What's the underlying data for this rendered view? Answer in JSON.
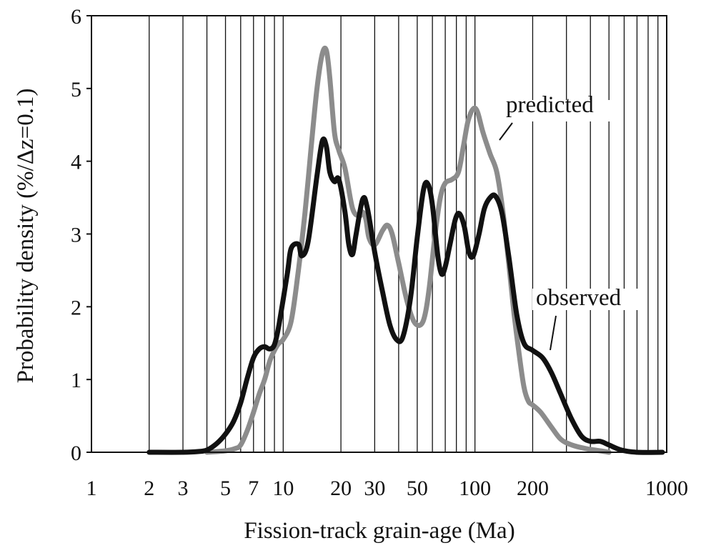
{
  "chart_data": {
    "type": "line",
    "xlabel": "Fission-track grain-age (Ma)",
    "ylabel": "Probability density (%/Δz=0.1)",
    "xscale": "log",
    "xlim": [
      1,
      1000
    ],
    "ylim": [
      0,
      6
    ],
    "grid": "vertical",
    "x_tick_labels": [
      {
        "value": 1,
        "label": "1"
      },
      {
        "value": 2,
        "label": "2"
      },
      {
        "value": 3,
        "label": "3"
      },
      {
        "value": 5,
        "label": "5"
      },
      {
        "value": 7,
        "label": "7"
      },
      {
        "value": 10,
        "label": "10"
      },
      {
        "value": 20,
        "label": "20"
      },
      {
        "value": 30,
        "label": "30"
      },
      {
        "value": 50,
        "label": "50"
      },
      {
        "value": 100,
        "label": "100"
      },
      {
        "value": 200,
        "label": "200"
      },
      {
        "value": 1000,
        "label": "1000"
      }
    ],
    "y_ticks": [
      0,
      1,
      2,
      3,
      4,
      5,
      6
    ],
    "series": [
      {
        "name": "observed",
        "color": "#111111",
        "points": [
          [
            2.0,
            0.0
          ],
          [
            3.0,
            0.0
          ],
          [
            3.6,
            0.01
          ],
          [
            4.0,
            0.03
          ],
          [
            4.5,
            0.12
          ],
          [
            5.0,
            0.25
          ],
          [
            5.5,
            0.42
          ],
          [
            6.0,
            0.68
          ],
          [
            6.5,
            1.02
          ],
          [
            7.0,
            1.3
          ],
          [
            7.5,
            1.42
          ],
          [
            8.0,
            1.45
          ],
          [
            8.5,
            1.42
          ],
          [
            9.0,
            1.48
          ],
          [
            9.5,
            1.75
          ],
          [
            10.5,
            2.45
          ],
          [
            11.0,
            2.8
          ],
          [
            12.0,
            2.86
          ],
          [
            12.5,
            2.7
          ],
          [
            13.5,
            2.9
          ],
          [
            15.0,
            3.8
          ],
          [
            16.0,
            4.28
          ],
          [
            16.8,
            4.2
          ],
          [
            17.5,
            3.85
          ],
          [
            18.5,
            3.72
          ],
          [
            19.5,
            3.75
          ],
          [
            21.0,
            3.3
          ],
          [
            22.0,
            2.85
          ],
          [
            23.0,
            2.72
          ],
          [
            24.0,
            3.0
          ],
          [
            26.0,
            3.48
          ],
          [
            27.5,
            3.35
          ],
          [
            30.0,
            2.75
          ],
          [
            33.0,
            2.2
          ],
          [
            36.0,
            1.75
          ],
          [
            39.0,
            1.55
          ],
          [
            42.0,
            1.58
          ],
          [
            46.0,
            2.1
          ],
          [
            50.0,
            2.95
          ],
          [
            54.0,
            3.62
          ],
          [
            57.0,
            3.68
          ],
          [
            60.0,
            3.4
          ],
          [
            64.0,
            2.7
          ],
          [
            67.0,
            2.45
          ],
          [
            70.0,
            2.55
          ],
          [
            74.0,
            2.85
          ],
          [
            79.0,
            3.2
          ],
          [
            83.0,
            3.28
          ],
          [
            88.0,
            3.1
          ],
          [
            93.0,
            2.75
          ],
          [
            98.0,
            2.7
          ],
          [
            105.0,
            3.0
          ],
          [
            112.0,
            3.35
          ],
          [
            120.0,
            3.5
          ],
          [
            128.0,
            3.52
          ],
          [
            138.0,
            3.3
          ],
          [
            150.0,
            2.7
          ],
          [
            165.0,
            1.9
          ],
          [
            180.0,
            1.5
          ],
          [
            200.0,
            1.4
          ],
          [
            225.0,
            1.3
          ],
          [
            250.0,
            1.1
          ],
          [
            280.0,
            0.8
          ],
          [
            320.0,
            0.45
          ],
          [
            360.0,
            0.22
          ],
          [
            400.0,
            0.15
          ],
          [
            450.0,
            0.15
          ],
          [
            500.0,
            0.1
          ],
          [
            580.0,
            0.03
          ],
          [
            700.0,
            0.0
          ],
          [
            950.0,
            0.0
          ]
        ]
      },
      {
        "name": "predicted",
        "color": "#8c8c8c",
        "points": [
          [
            4.0,
            0.0
          ],
          [
            5.0,
            0.02
          ],
          [
            5.6,
            0.05
          ],
          [
            6.0,
            0.1
          ],
          [
            6.5,
            0.3
          ],
          [
            7.0,
            0.55
          ],
          [
            7.5,
            0.8
          ],
          [
            8.0,
            1.0
          ],
          [
            8.5,
            1.25
          ],
          [
            9.0,
            1.4
          ],
          [
            9.5,
            1.5
          ],
          [
            10.0,
            1.55
          ],
          [
            11.0,
            1.8
          ],
          [
            12.0,
            2.5
          ],
          [
            13.0,
            3.3
          ],
          [
            14.0,
            4.2
          ],
          [
            15.0,
            5.0
          ],
          [
            16.0,
            5.48
          ],
          [
            16.8,
            5.52
          ],
          [
            17.5,
            5.15
          ],
          [
            18.5,
            4.4
          ],
          [
            19.5,
            4.15
          ],
          [
            21.0,
            3.9
          ],
          [
            23.0,
            3.35
          ],
          [
            25.0,
            3.25
          ],
          [
            26.0,
            3.3
          ],
          [
            27.0,
            3.2
          ],
          [
            28.0,
            2.95
          ],
          [
            30.0,
            2.85
          ],
          [
            33.0,
            3.05
          ],
          [
            35.0,
            3.12
          ],
          [
            37.0,
            3.0
          ],
          [
            40.0,
            2.6
          ],
          [
            44.0,
            2.1
          ],
          [
            48.0,
            1.8
          ],
          [
            52.0,
            1.75
          ],
          [
            55.0,
            1.9
          ],
          [
            58.0,
            2.3
          ],
          [
            62.0,
            3.0
          ],
          [
            66.0,
            3.5
          ],
          [
            70.0,
            3.7
          ],
          [
            76.0,
            3.75
          ],
          [
            82.0,
            3.85
          ],
          [
            87.0,
            4.2
          ],
          [
            92.0,
            4.55
          ],
          [
            98.0,
            4.72
          ],
          [
            103.0,
            4.68
          ],
          [
            110.0,
            4.4
          ],
          [
            120.0,
            4.1
          ],
          [
            130.0,
            3.85
          ],
          [
            140.0,
            3.3
          ],
          [
            150.0,
            2.6
          ],
          [
            160.0,
            1.9
          ],
          [
            170.0,
            1.35
          ],
          [
            180.0,
            0.9
          ],
          [
            190.0,
            0.7
          ],
          [
            200.0,
            0.65
          ],
          [
            220.0,
            0.55
          ],
          [
            250.0,
            0.35
          ],
          [
            280.0,
            0.18
          ],
          [
            320.0,
            0.1
          ],
          [
            380.0,
            0.05
          ],
          [
            450.0,
            0.02
          ],
          [
            500.0,
            0.0
          ]
        ]
      }
    ],
    "annotations": [
      {
        "text": "predicted",
        "series": "predicted"
      },
      {
        "text": "observed",
        "series": "observed"
      }
    ]
  }
}
